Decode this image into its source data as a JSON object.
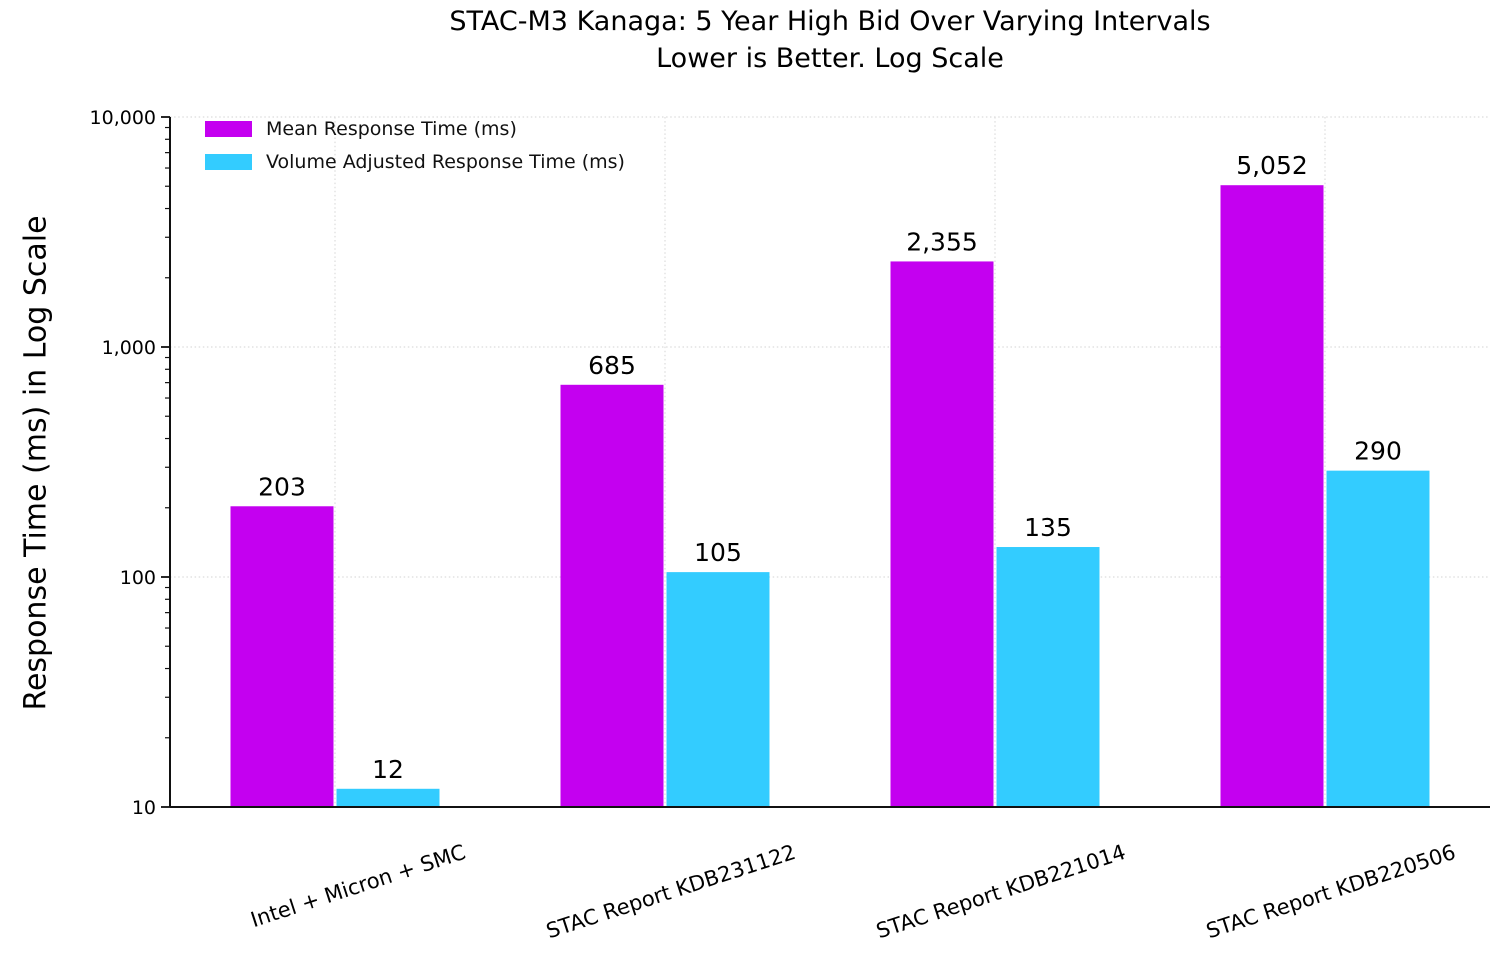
{
  "title": {
    "line1": "STAC-M3 Kanaga: 5 Year High Bid Over Varying Intervals",
    "line2": "Lower is Better. Log Scale"
  },
  "chart_data": {
    "type": "bar",
    "title": "STAC-M3 Kanaga: 5 Year High Bid Over Varying Intervals",
    "subtitle": "Lower is Better. Log Scale",
    "categories": [
      "Intel + Micron + SMC",
      "STAC Report KDB231122",
      "STAC Report KDB221014",
      "STAC Report KDB220506"
    ],
    "series": [
      {
        "name": "Mean Response Time (ms)",
        "color": "#C400F0",
        "values": [
          203,
          685,
          2355,
          5052
        ],
        "value_labels": [
          "203",
          "685",
          "2,355",
          "5,052"
        ]
      },
      {
        "name": "Volume Adjusted Response Time (ms)",
        "color": "#33CCFF",
        "values": [
          12,
          105,
          135,
          290
        ],
        "value_labels": [
          "12",
          "105",
          "135",
          "290"
        ]
      }
    ],
    "xlabel": "",
    "ylabel": "Response Time (ms) in Log Scale",
    "yscale": "log",
    "ylim": [
      10,
      10000
    ],
    "yticks": [
      {
        "value": 10000,
        "label": "10,000"
      },
      {
        "value": 1000,
        "label": "1,000"
      },
      {
        "value": 100,
        "label": "100"
      },
      {
        "value": 10,
        "label": "10"
      }
    ],
    "grid": {
      "horizontal": true,
      "vertical": true,
      "style": "dotted"
    },
    "legend_position": "upper left"
  },
  "colors": {
    "background": "#ffffff",
    "grid": "#dcdcdc",
    "axis": "#111111",
    "text": "#000000"
  }
}
